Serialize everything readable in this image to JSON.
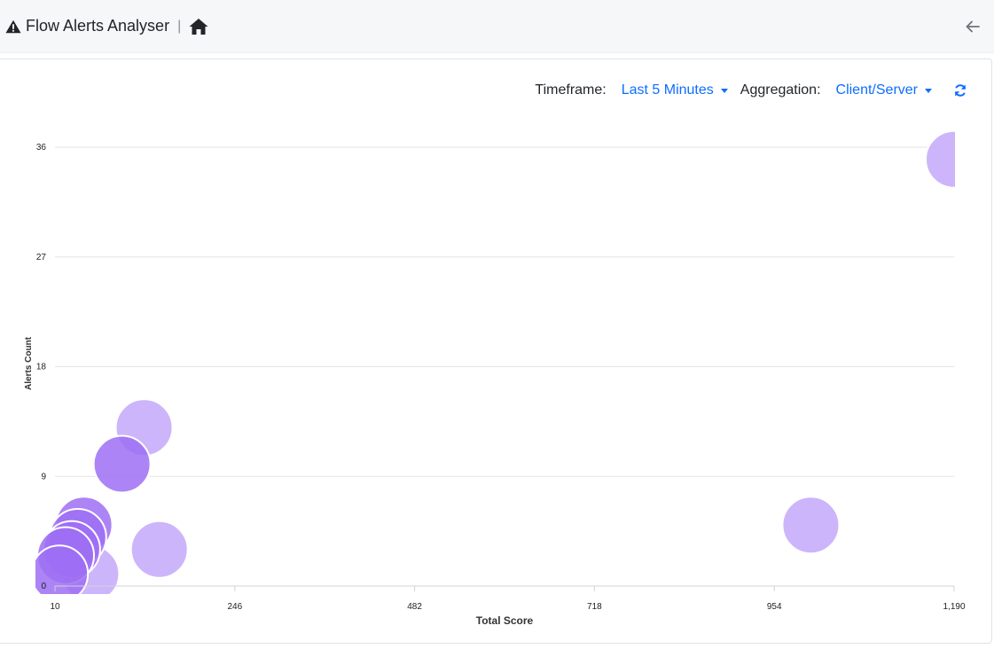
{
  "header": {
    "title": "Flow Alerts Analyser",
    "separator": "|",
    "icons": {
      "warning": "warning-triangle-icon",
      "home": "home-icon",
      "back": "arrow-left-icon"
    }
  },
  "controls": {
    "timeframe_label": "Timeframe:",
    "timeframe_value": "Last 5 Minutes",
    "aggregation_label": "Aggregation:",
    "aggregation_value": "Client/Server",
    "refresh_icon": "refresh-icon"
  },
  "colors": {
    "bubble_light": "#c6adf9",
    "bubble_dark": "#9d6ef3",
    "accent": "#0d6efd"
  },
  "chart_data": {
    "type": "scatter",
    "xlabel": "Total Score",
    "ylabel": "Alerts Count",
    "xlim": [
      10,
      1190
    ],
    "ylim": [
      0,
      36
    ],
    "x_ticks": [
      "10",
      "246",
      "482",
      "718",
      "954",
      "1,190"
    ],
    "y_ticks": [
      "0",
      "9",
      "18",
      "27",
      "36"
    ],
    "grid": true,
    "points": [
      {
        "x": 1190,
        "y": 35,
        "shade": "light"
      },
      {
        "x": 127,
        "y": 13,
        "shade": "light"
      },
      {
        "x": 98,
        "y": 10,
        "shade": "dark"
      },
      {
        "x": 1002,
        "y": 5,
        "shade": "light"
      },
      {
        "x": 147,
        "y": 3,
        "shade": "light"
      },
      {
        "x": 48,
        "y": 5,
        "shade": "dark"
      },
      {
        "x": 57,
        "y": 1,
        "shade": "light"
      },
      {
        "x": 40,
        "y": 4,
        "shade": "dark"
      },
      {
        "x": 32,
        "y": 3,
        "shade": "dark"
      },
      {
        "x": 24,
        "y": 2.5,
        "shade": "dark"
      },
      {
        "x": 16,
        "y": 1,
        "shade": "dark"
      }
    ]
  }
}
